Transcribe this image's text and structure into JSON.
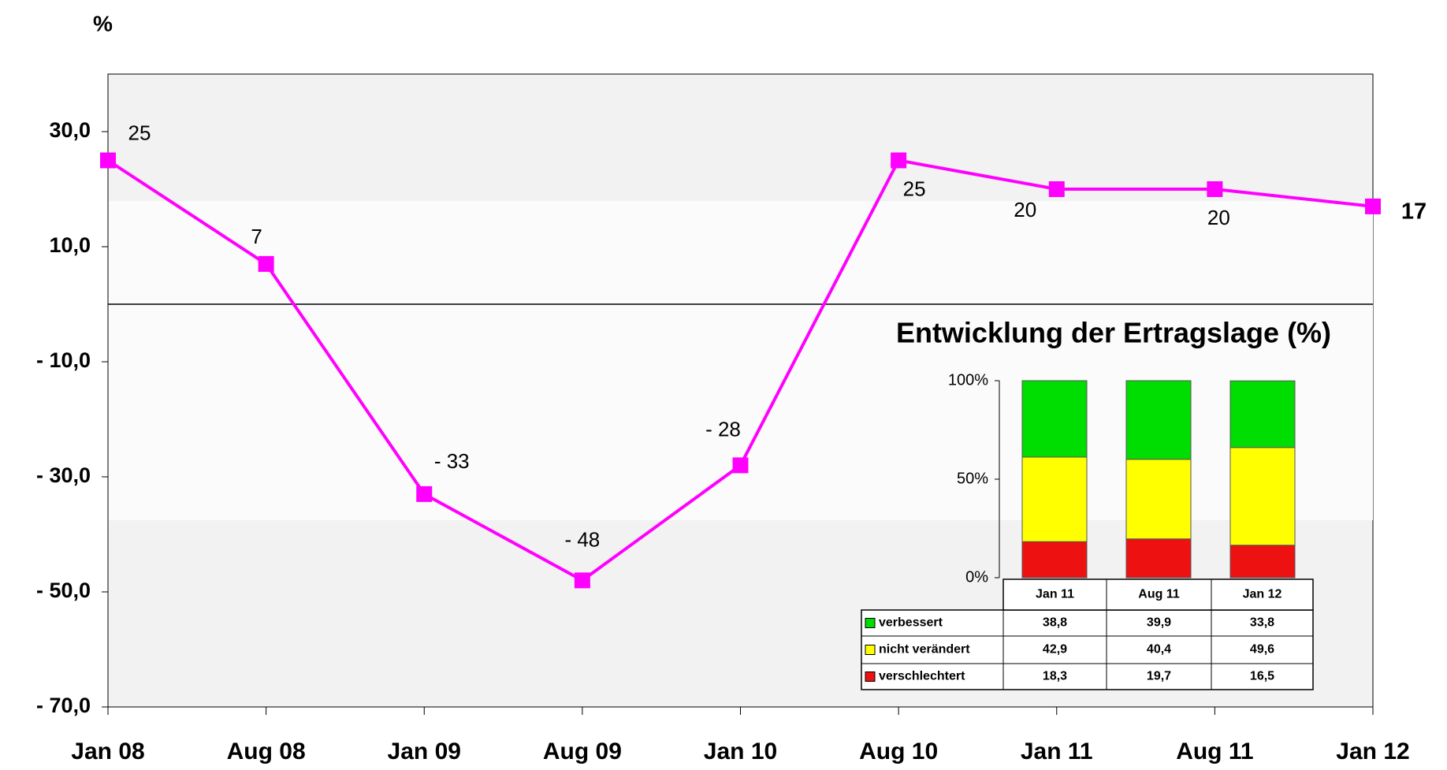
{
  "chart_data": [
    {
      "type": "line",
      "y_label": "%",
      "categories": [
        "Jan 08",
        "Aug 08",
        "Jan 09",
        "Aug 09",
        "Jan 10",
        "Aug 10",
        "Jan 11",
        "Aug 11",
        "Jan 12"
      ],
      "values": [
        25,
        7,
        -33,
        -48,
        -28,
        25,
        20,
        20,
        17
      ],
      "value_labels": [
        "25",
        "7",
        "- 33",
        "- 48",
        "- 28",
        "25",
        "20",
        "20",
        "17"
      ],
      "color": "#ff00ff",
      "ylim": [
        -70,
        40
      ],
      "yticks": [
        {
          "value": 30,
          "label": "30,0"
        },
        {
          "value": 10,
          "label": "10,0"
        },
        {
          "value": -10,
          "label": "- 10,0"
        },
        {
          "value": -30,
          "label": "- 30,0"
        },
        {
          "value": -50,
          "label": "- 50,0"
        },
        {
          "value": -70,
          "label": "- 70,0"
        }
      ]
    },
    {
      "type": "stacked_bar",
      "title": "Entwicklung der Ertragslage (%)",
      "categories": [
        "Jan 11",
        "Aug 11",
        "Jan 12"
      ],
      "series": [
        {
          "name": "verbessert",
          "color": "#00dd00",
          "values": [
            38.8,
            39.9,
            33.8
          ],
          "value_labels": [
            "38,8",
            "39,9",
            "33,8"
          ]
        },
        {
          "name": "nicht verändert",
          "color": "#ffff00",
          "values": [
            42.9,
            40.4,
            49.6
          ],
          "value_labels": [
            "42,9",
            "40,4",
            "49,6"
          ]
        },
        {
          "name": "verschlechtert",
          "color": "#ee1111",
          "values": [
            18.3,
            19.7,
            16.5
          ],
          "value_labels": [
            "18,3",
            "19,7",
            "16,5"
          ]
        }
      ],
      "ylim": [
        0,
        100
      ],
      "yticks": [
        {
          "value": 0,
          "label": "0%"
        },
        {
          "value": 50,
          "label": "50%"
        },
        {
          "value": 100,
          "label": "100%"
        }
      ]
    }
  ]
}
